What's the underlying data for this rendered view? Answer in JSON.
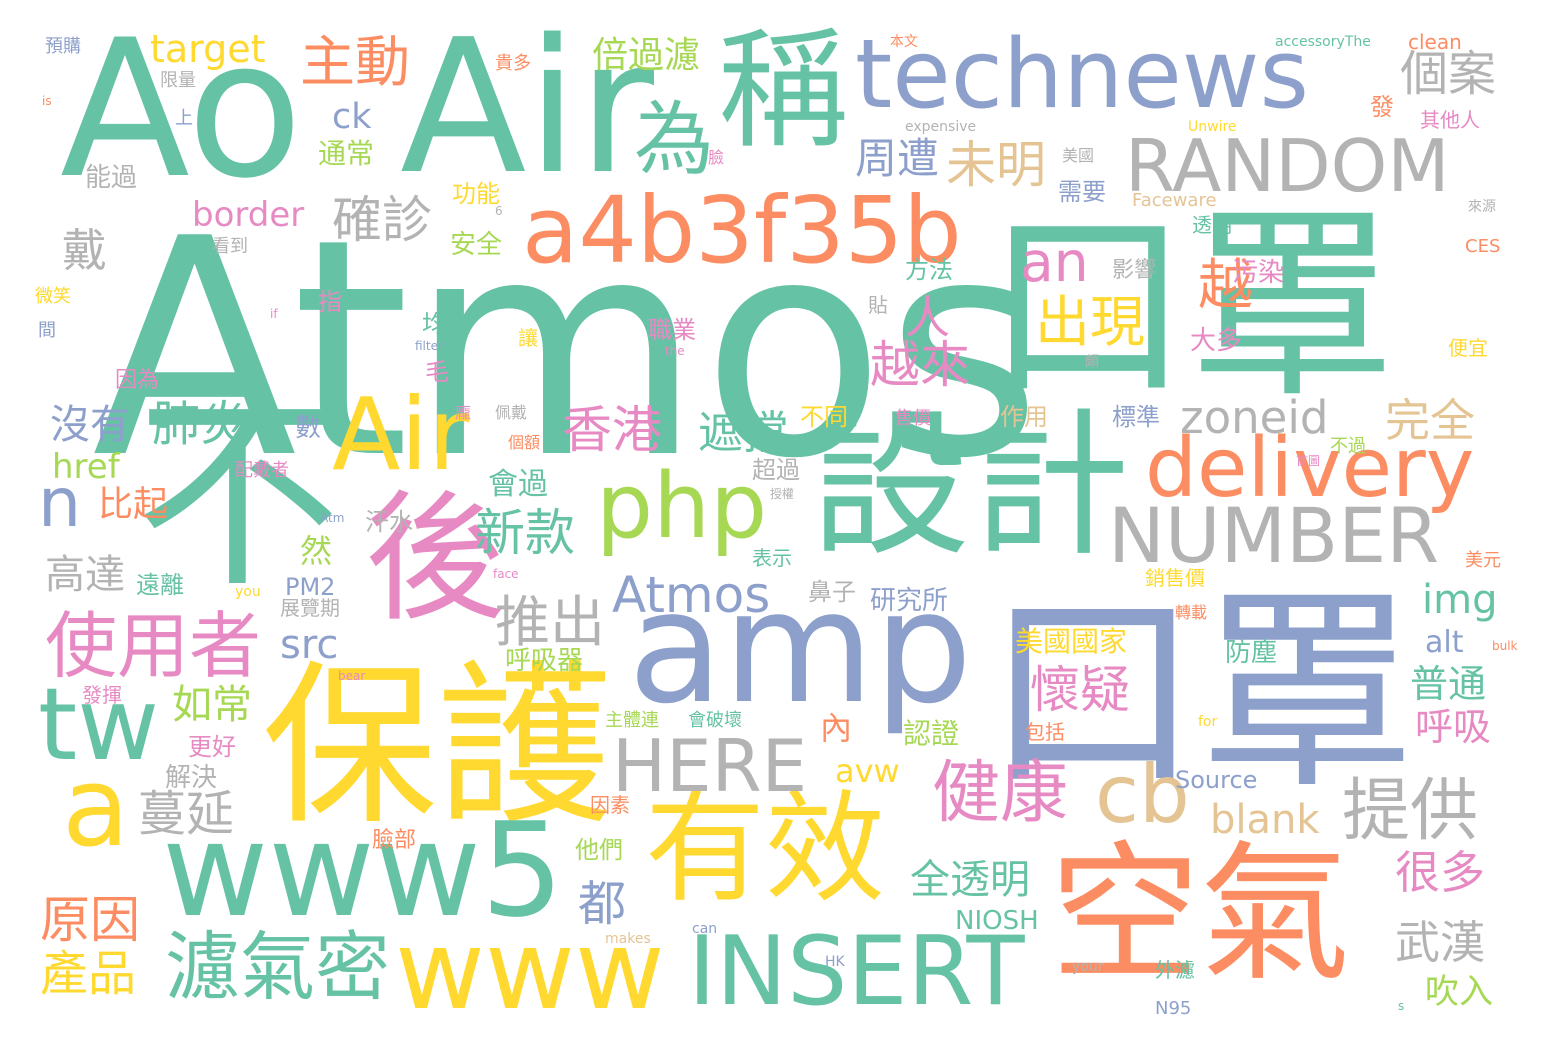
{
  "palette": {
    "green": "#66c2a5",
    "orange": "#fc8d62",
    "blue": "#8da0cb",
    "pink": "#e78ac3",
    "lime": "#a6d854",
    "yellow": "#ffd92f",
    "tan": "#e5c494",
    "gray": "#b3b3b3"
  },
  "words": {
    "atmos_big": "Atmos",
    "kouzhao_1": "口罩",
    "kouzhao_2": "口罩",
    "ao": "Ao",
    "air_1": "Air",
    "air_2": "Air",
    "bu": "不",
    "hou": "後",
    "baohu": "保護",
    "sheji": "設計",
    "amp": "amp",
    "technews": "technews",
    "cheng": "稱",
    "wei": "為",
    "a4b3": "a4b3f35b",
    "www5": "www5",
    "www": "www",
    "youxiao": "有效",
    "kongqi": "空氣",
    "insert": "INSERT",
    "random": "RANDOM",
    "number": "NUMBER",
    "delivery": "delivery",
    "php": "php",
    "tw": "tw",
    "a": "a",
    "n": "n",
    "cb": "cb",
    "shiyongzhe": "使用者",
    "here": "HERE",
    "jiankang": "健康",
    "tigong": "提供",
    "lvqimi": "濾氣密",
    "zhudong": "主動",
    "gean": "個案",
    "weiming": "未明",
    "quezhen": "確診",
    "an": "an",
    "chuxian": "出現",
    "atmos_mid": "Atmos",
    "xianggang": "香港",
    "zhedang": "遮擋",
    "feiyan": "肺炎",
    "meiyou": "沒有",
    "zoneid": "zoneid",
    "wanquan": "完全",
    "yuelai": "越來",
    "yue": "越",
    "ren": "人",
    "zhouzao": "周遭",
    "dai": "戴",
    "target": "target",
    "beiguolv": "倍過濾",
    "ck": "ck",
    "tongchang": "通常",
    "border": "border",
    "anquan": "安全",
    "gongneng": "功能",
    "xinkuan": "新款",
    "tuichu": "推出",
    "huaiyi": "懷疑",
    "src": "src",
    "href": "href",
    "bici": "比起",
    "gaoda": "高達",
    "img": "img",
    "alt": "alt",
    "putong": "普通",
    "huxi": "呼吸",
    "ruchang": "如常",
    "gengao": "更好",
    "jiejue": "解決",
    "manyan": "蔓延",
    "yuanyin": "原因",
    "chanpin": "產品",
    "dou": "都",
    "quantouming": "全透明",
    "henduo": "很多",
    "wuhan": "武漢",
    "chuiru": "吹入",
    "blank": "blank",
    "avw": "avw",
    "nei": "內",
    "renzheng": "認證",
    "source": "Source",
    "niosh": "NIOSH",
    "n95": "N95",
    "meiguoguojia": "美國國家",
    "fangchen": "防塵",
    "baokuo": "包括",
    "huxiqi": "呼吸器",
    "yanjiusuo": "研究所",
    "bizi": "鼻子",
    "pm2": "PM2",
    "ran": "然",
    "zhanlanqi": "展覽期",
    "yuanli": "遠離",
    "biaoshi": "表示",
    "huiguolv": "會過",
    "zhiye": "職業",
    "jun": "均",
    "rang": "讓",
    "wuran": "污染",
    "yingxiang": "影響",
    "daduo": "大多",
    "pianyi": "便宜",
    "meiyuan": "美元",
    "xiaoshoujia": "銷售價",
    "zhuanzai": "轉載",
    "buguo": "不過",
    "shoujia": "售價",
    "butong": "不同",
    "zuoyong": "作用",
    "biaozhun": "標準",
    "chaoguo": "超過",
    "hanshui": "汗水",
    "peidaizhe": "配戴者",
    "yinwei": "因為",
    "mao": "毛",
    "shu": "數",
    "zhi": "指",
    "fangfa": "方法",
    "tie": "貼",
    "xuyao": "需要",
    "meiguo": "美國",
    "lian": "臉",
    "touming": "透明",
    "fa": "發",
    "qitaren": "其他人",
    "clean": "clean",
    "accessory": "accessoryThe",
    "unwire": "Unwire",
    "ces": "CES",
    "laiyuan": "來源",
    "faceware": "Faceware",
    "expensive": "expensive",
    "benwen": "本文",
    "guiduo": "貴多",
    "yugou": "預購",
    "xianliang": "限量",
    "shang": "上",
    "nengguo": "能過",
    "kandao": "看到",
    "weixiao": "微笑",
    "jian": "間",
    "is": "is",
    "if": "if",
    "filter": "filter",
    "the": "the",
    "you": "you",
    "face": "face",
    "atm": "Atm",
    "bear": "bear",
    "can": "can",
    "makes": "makes",
    "hk": "HK",
    "your": "your",
    "for": "for",
    "bulk": "bulk",
    "s": "s",
    "six": "6",
    "waiguolv": "外濾",
    "yinsu": "因素",
    "tamen": "他們",
    "lianbu": "臉部",
    "huipohuai": "會破壞",
    "zhutilian": "主體連",
    "fahui": "發揮",
    "pan": "龐",
    "peidai": "佩戴",
    "gee": "個額",
    "shouquan": "授權",
    "shouye": "首圖",
    "pa": "頗"
  }
}
